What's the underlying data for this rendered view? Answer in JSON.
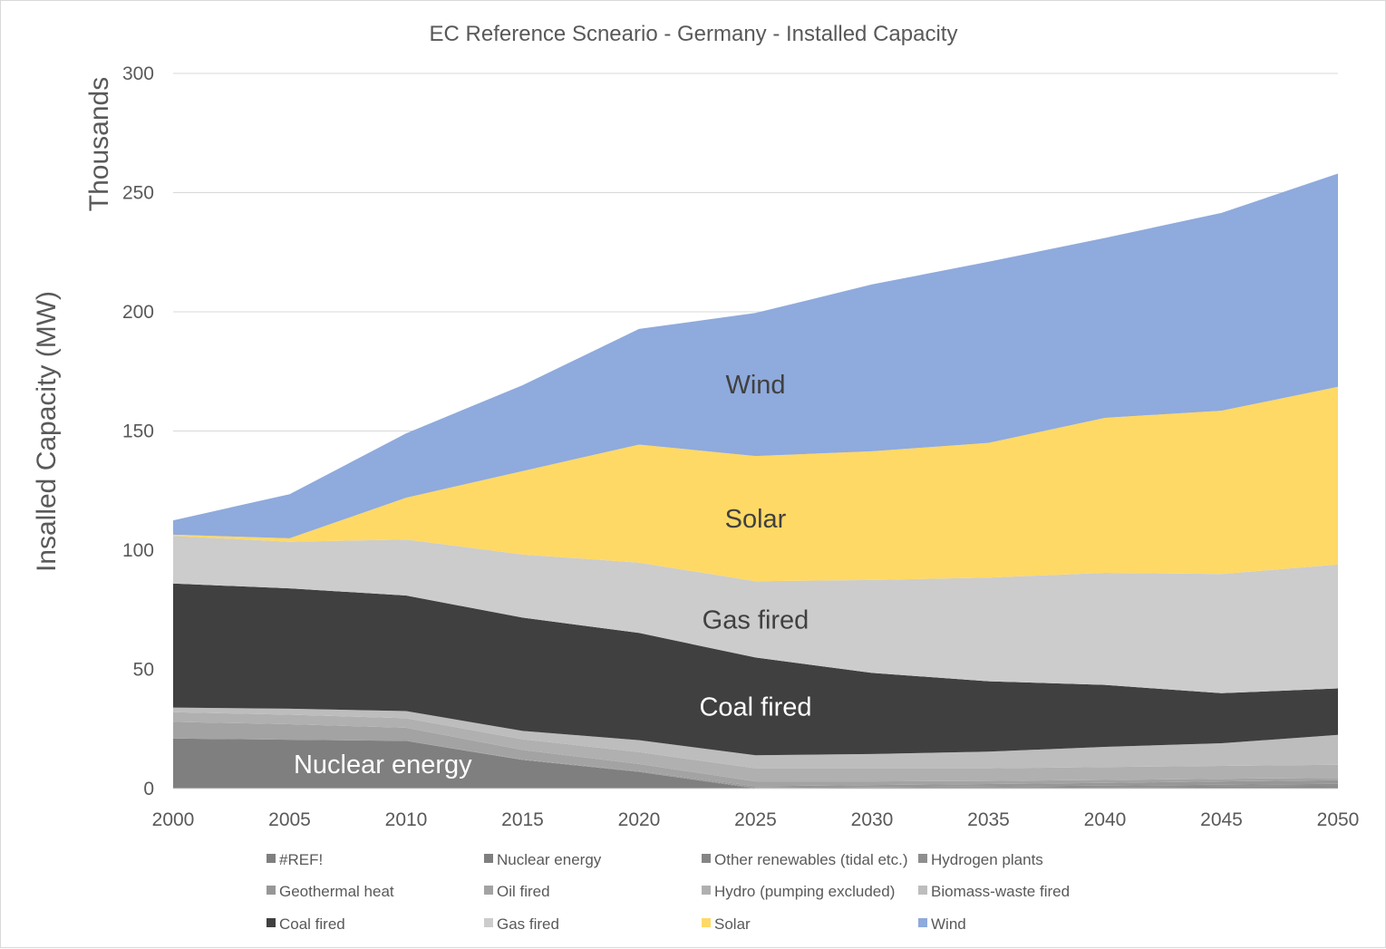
{
  "chart_data": {
    "type": "area",
    "stacked": true,
    "title": "EC Reference Scneario - Germany - Installed Capacity",
    "ylabel": "Insalled Capacity (MW)",
    "yunits_label": "Thousands",
    "xlabel": "",
    "ylim": [
      0,
      300
    ],
    "yticks": [
      0,
      50,
      100,
      150,
      200,
      250,
      300
    ],
    "grid": true,
    "legend_position": "bottom",
    "categories": [
      "2000",
      "2005",
      "2010",
      "2015",
      "2020",
      "2025",
      "2030",
      "2035",
      "2040",
      "2045",
      "2050"
    ],
    "value_unit": "thousand MW",
    "series": [
      {
        "name": "#REF!",
        "color": "#7f7f7f",
        "values": [
          0,
          0,
          0,
          0,
          0,
          0,
          0,
          0,
          0,
          0,
          0
        ]
      },
      {
        "name": "Nuclear energy",
        "color": "#7f7f7f",
        "values": [
          21,
          20.5,
          20,
          12,
          7,
          0,
          0,
          0,
          0,
          0,
          0
        ]
      },
      {
        "name": "Other renewables (tidal etc.)",
        "color": "#858585",
        "values": [
          0,
          0,
          0,
          0,
          0,
          0.3,
          0.4,
          0.5,
          0.6,
          0.8,
          1
        ]
      },
      {
        "name": "Hydrogen plants",
        "color": "#8e8e8e",
        "values": [
          0,
          0,
          0,
          0,
          0,
          0.2,
          0.3,
          0.4,
          0.6,
          0.8,
          1
        ]
      },
      {
        "name": "Geothermal heat",
        "color": "#979797",
        "values": [
          0,
          0,
          0,
          0.2,
          0.3,
          0.5,
          0.8,
          1,
          1.2,
          1.4,
          1.5
        ]
      },
      {
        "name": "Oil fired",
        "color": "#a3a3a3",
        "values": [
          7,
          6.5,
          5.5,
          4,
          3,
          2,
          1.5,
          1.3,
          1.2,
          1.1,
          1
        ]
      },
      {
        "name": "Hydro (pumping excluded)",
        "color": "#b0b0b0",
        "values": [
          4,
          4,
          4,
          4.5,
          5,
          5.5,
          5.5,
          5.3,
          5.4,
          5.4,
          5.5
        ]
      },
      {
        "name": "Biomass-waste fired",
        "color": "#bdbdbd",
        "values": [
          2,
          2.5,
          3,
          3.5,
          5,
          5.5,
          6,
          7,
          8.5,
          9.5,
          12.5
        ]
      },
      {
        "name": "Coal fired",
        "color": "#404040",
        "values": [
          52,
          50.5,
          48.5,
          47.5,
          45,
          41,
          34,
          29.5,
          26,
          21,
          19.5
        ]
      },
      {
        "name": "Gas fired",
        "color": "#cccccc",
        "values": [
          20,
          19.5,
          23.5,
          26.5,
          29.5,
          32,
          39,
          43.5,
          47,
          50,
          52
        ]
      },
      {
        "name": "Solar",
        "color": "#ffd966",
        "values": [
          0.5,
          1.5,
          17.5,
          35,
          49.5,
          52.5,
          54,
          56.5,
          65,
          68.5,
          74.5
        ]
      },
      {
        "name": "Wind",
        "color": "#8faadc",
        "values": [
          6,
          18.5,
          27,
          36,
          48.5,
          60,
          70,
          76,
          75.5,
          83,
          89.5
        ]
      }
    ],
    "annotations": [
      {
        "text": "Wind",
        "series": "Wind"
      },
      {
        "text": "Solar",
        "series": "Solar"
      },
      {
        "text": "Gas fired",
        "series": "Gas fired"
      },
      {
        "text": "Coal fired",
        "series": "Coal fired"
      },
      {
        "text": "Nuclear energy",
        "series": "Nuclear energy"
      }
    ]
  }
}
